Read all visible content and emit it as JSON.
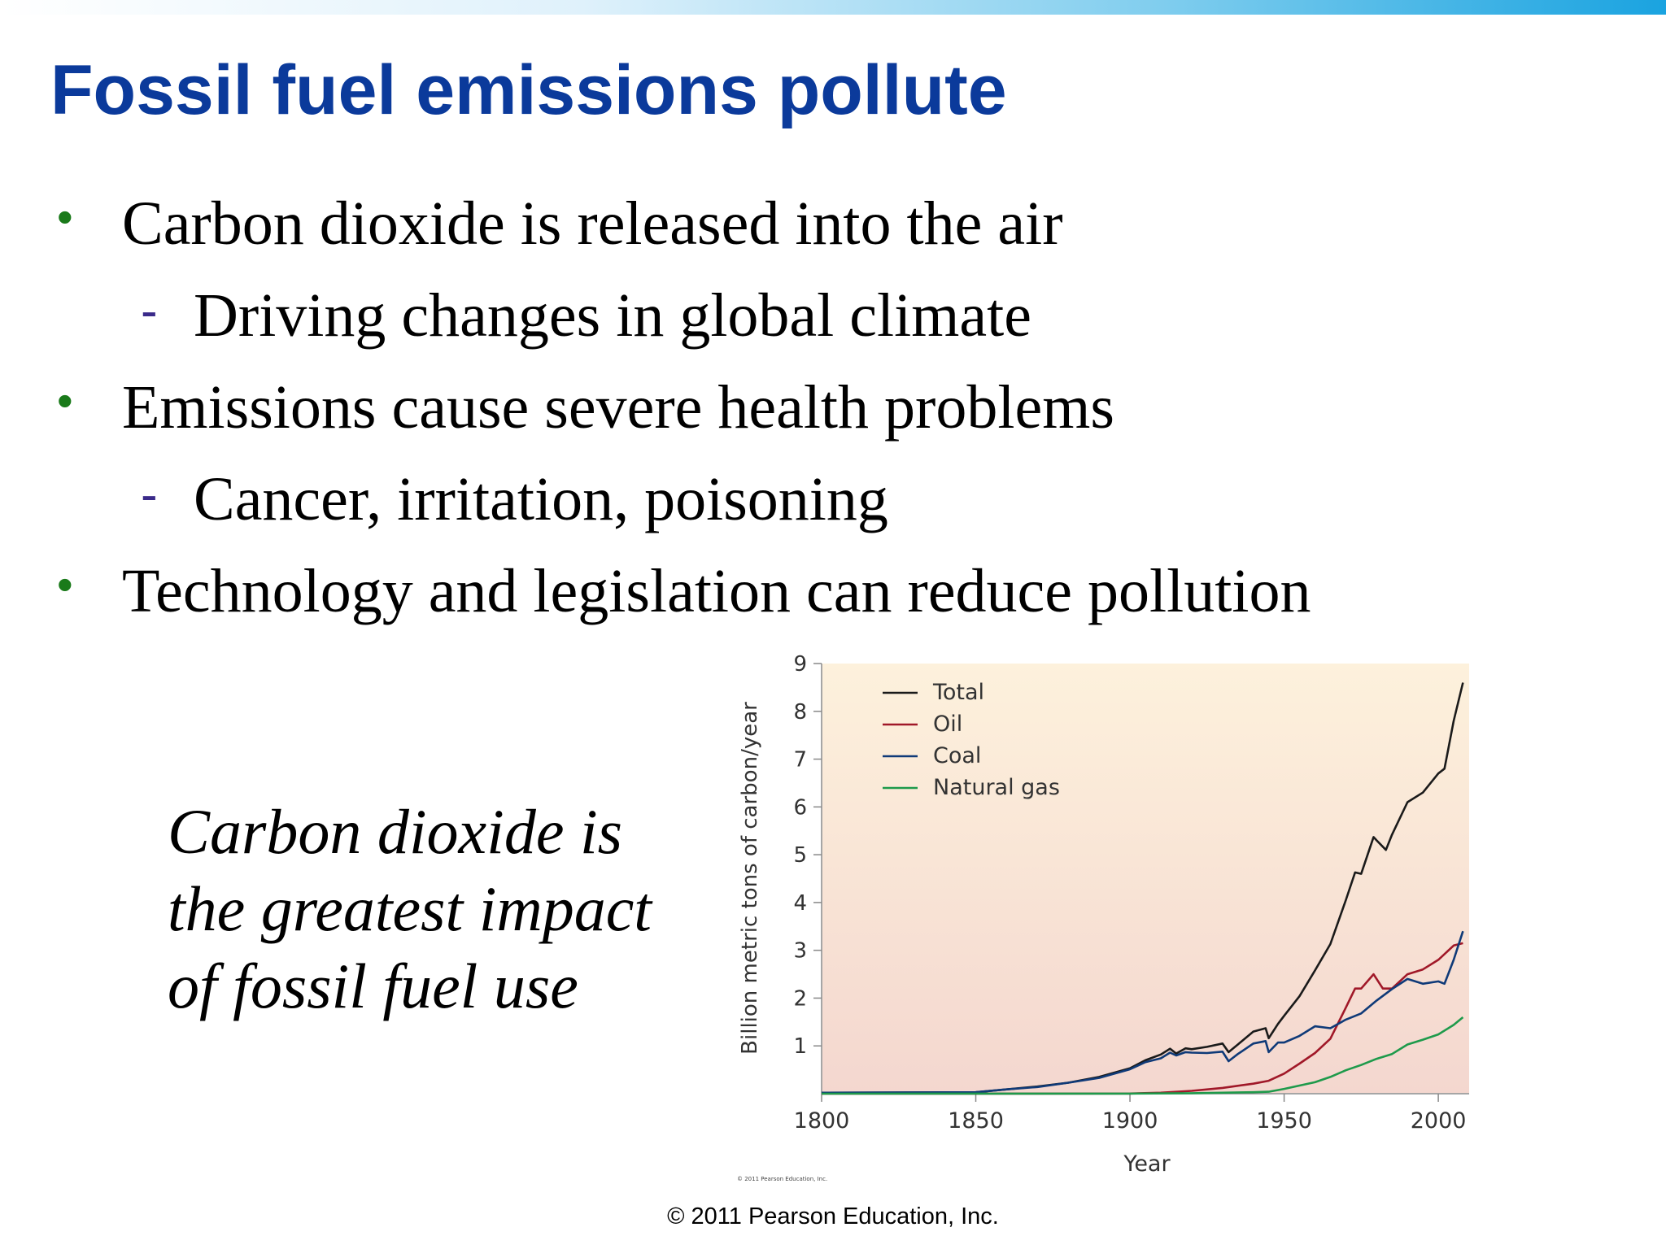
{
  "slide": {
    "title": "Fossil fuel emissions pollute",
    "bullets": [
      {
        "level": 1,
        "text": "Carbon dioxide is released into the air"
      },
      {
        "level": 2,
        "text": "Driving changes in global climate"
      },
      {
        "level": 1,
        "text": "Emissions cause severe health problems"
      },
      {
        "level": 2,
        "text": "Cancer, irritation, poisoning"
      },
      {
        "level": 1,
        "text": "Technology and legislation can reduce pollution"
      }
    ],
    "bullet_symbols": {
      "level1": "•",
      "level2": "-"
    },
    "caption_lines": [
      "Carbon dioxide is",
      "the greatest impact",
      "of fossil fuel use"
    ],
    "footer": "© 2011 Pearson Education, Inc.",
    "colors": {
      "title": "#0b3a9b",
      "bullet_l1": "#1a7a1a",
      "bullet_l2": "#3a2a8a"
    }
  },
  "chart_data": {
    "type": "line",
    "title": "",
    "xlabel": "Year",
    "ylabel": "Billion metric tons of carbon/year",
    "xlim": [
      1800,
      2010
    ],
    "ylim": [
      0,
      9
    ],
    "x_ticks": [
      1800,
      1850,
      1900,
      1950,
      2000
    ],
    "y_ticks": [
      1,
      2,
      3,
      4,
      5,
      6,
      7,
      8,
      9
    ],
    "grid": false,
    "legend_position": "top-left",
    "credit": "© 2011 Pearson Education, Inc.",
    "series": [
      {
        "name": "Total",
        "color": "#1a1a1a",
        "x": [
          1800,
          1850,
          1860,
          1870,
          1880,
          1890,
          1900,
          1905,
          1910,
          1913,
          1915,
          1918,
          1920,
          1925,
          1930,
          1932,
          1935,
          1940,
          1944,
          1945,
          1948,
          1950,
          1955,
          1960,
          1965,
          1970,
          1973,
          1975,
          1979,
          1980,
          1983,
          1985,
          1990,
          1995,
          2000,
          2002,
          2005,
          2008
        ],
        "y": [
          0.02,
          0.03,
          0.09,
          0.15,
          0.23,
          0.35,
          0.53,
          0.7,
          0.82,
          0.94,
          0.84,
          0.95,
          0.93,
          0.98,
          1.05,
          0.87,
          1.03,
          1.3,
          1.37,
          1.16,
          1.46,
          1.63,
          2.04,
          2.58,
          3.13,
          4.05,
          4.63,
          4.6,
          5.37,
          5.3,
          5.1,
          5.42,
          6.1,
          6.3,
          6.7,
          6.8,
          7.8,
          8.6
        ]
      },
      {
        "name": "Oil",
        "color": "#a01828",
        "x": [
          1800,
          1870,
          1900,
          1910,
          1920,
          1930,
          1940,
          1945,
          1950,
          1955,
          1960,
          1965,
          1970,
          1973,
          1975,
          1979,
          1982,
          1985,
          1990,
          1995,
          2000,
          2005,
          2008
        ],
        "y": [
          0,
          0.001,
          0.003,
          0.02,
          0.06,
          0.12,
          0.21,
          0.27,
          0.42,
          0.63,
          0.85,
          1.15,
          1.8,
          2.2,
          2.2,
          2.5,
          2.2,
          2.2,
          2.5,
          2.6,
          2.8,
          3.1,
          3.15
        ]
      },
      {
        "name": "Coal",
        "color": "#0f3a78",
        "x": [
          1800,
          1850,
          1860,
          1870,
          1880,
          1890,
          1900,
          1905,
          1910,
          1913,
          1915,
          1918,
          1920,
          1925,
          1930,
          1932,
          1935,
          1940,
          1944,
          1945,
          1948,
          1950,
          1955,
          1960,
          1965,
          1970,
          1975,
          1980,
          1985,
          1990,
          1995,
          2000,
          2002,
          2005,
          2008
        ],
        "y": [
          0.02,
          0.03,
          0.09,
          0.14,
          0.23,
          0.33,
          0.51,
          0.66,
          0.74,
          0.86,
          0.8,
          0.87,
          0.86,
          0.85,
          0.88,
          0.68,
          0.83,
          1.05,
          1.1,
          0.87,
          1.07,
          1.07,
          1.21,
          1.41,
          1.37,
          1.55,
          1.68,
          1.95,
          2.19,
          2.4,
          2.3,
          2.35,
          2.3,
          2.8,
          3.4
        ]
      },
      {
        "name": "Natural gas",
        "color": "#1e9a4b",
        "x": [
          1800,
          1885,
          1900,
          1920,
          1930,
          1940,
          1945,
          1950,
          1955,
          1960,
          1965,
          1970,
          1975,
          1980,
          1985,
          1990,
          1995,
          2000,
          2005,
          2008
        ],
        "y": [
          0,
          0.001,
          0.002,
          0.01,
          0.02,
          0.03,
          0.04,
          0.1,
          0.17,
          0.24,
          0.35,
          0.49,
          0.6,
          0.73,
          0.83,
          1.03,
          1.13,
          1.24,
          1.44,
          1.6
        ]
      }
    ]
  }
}
